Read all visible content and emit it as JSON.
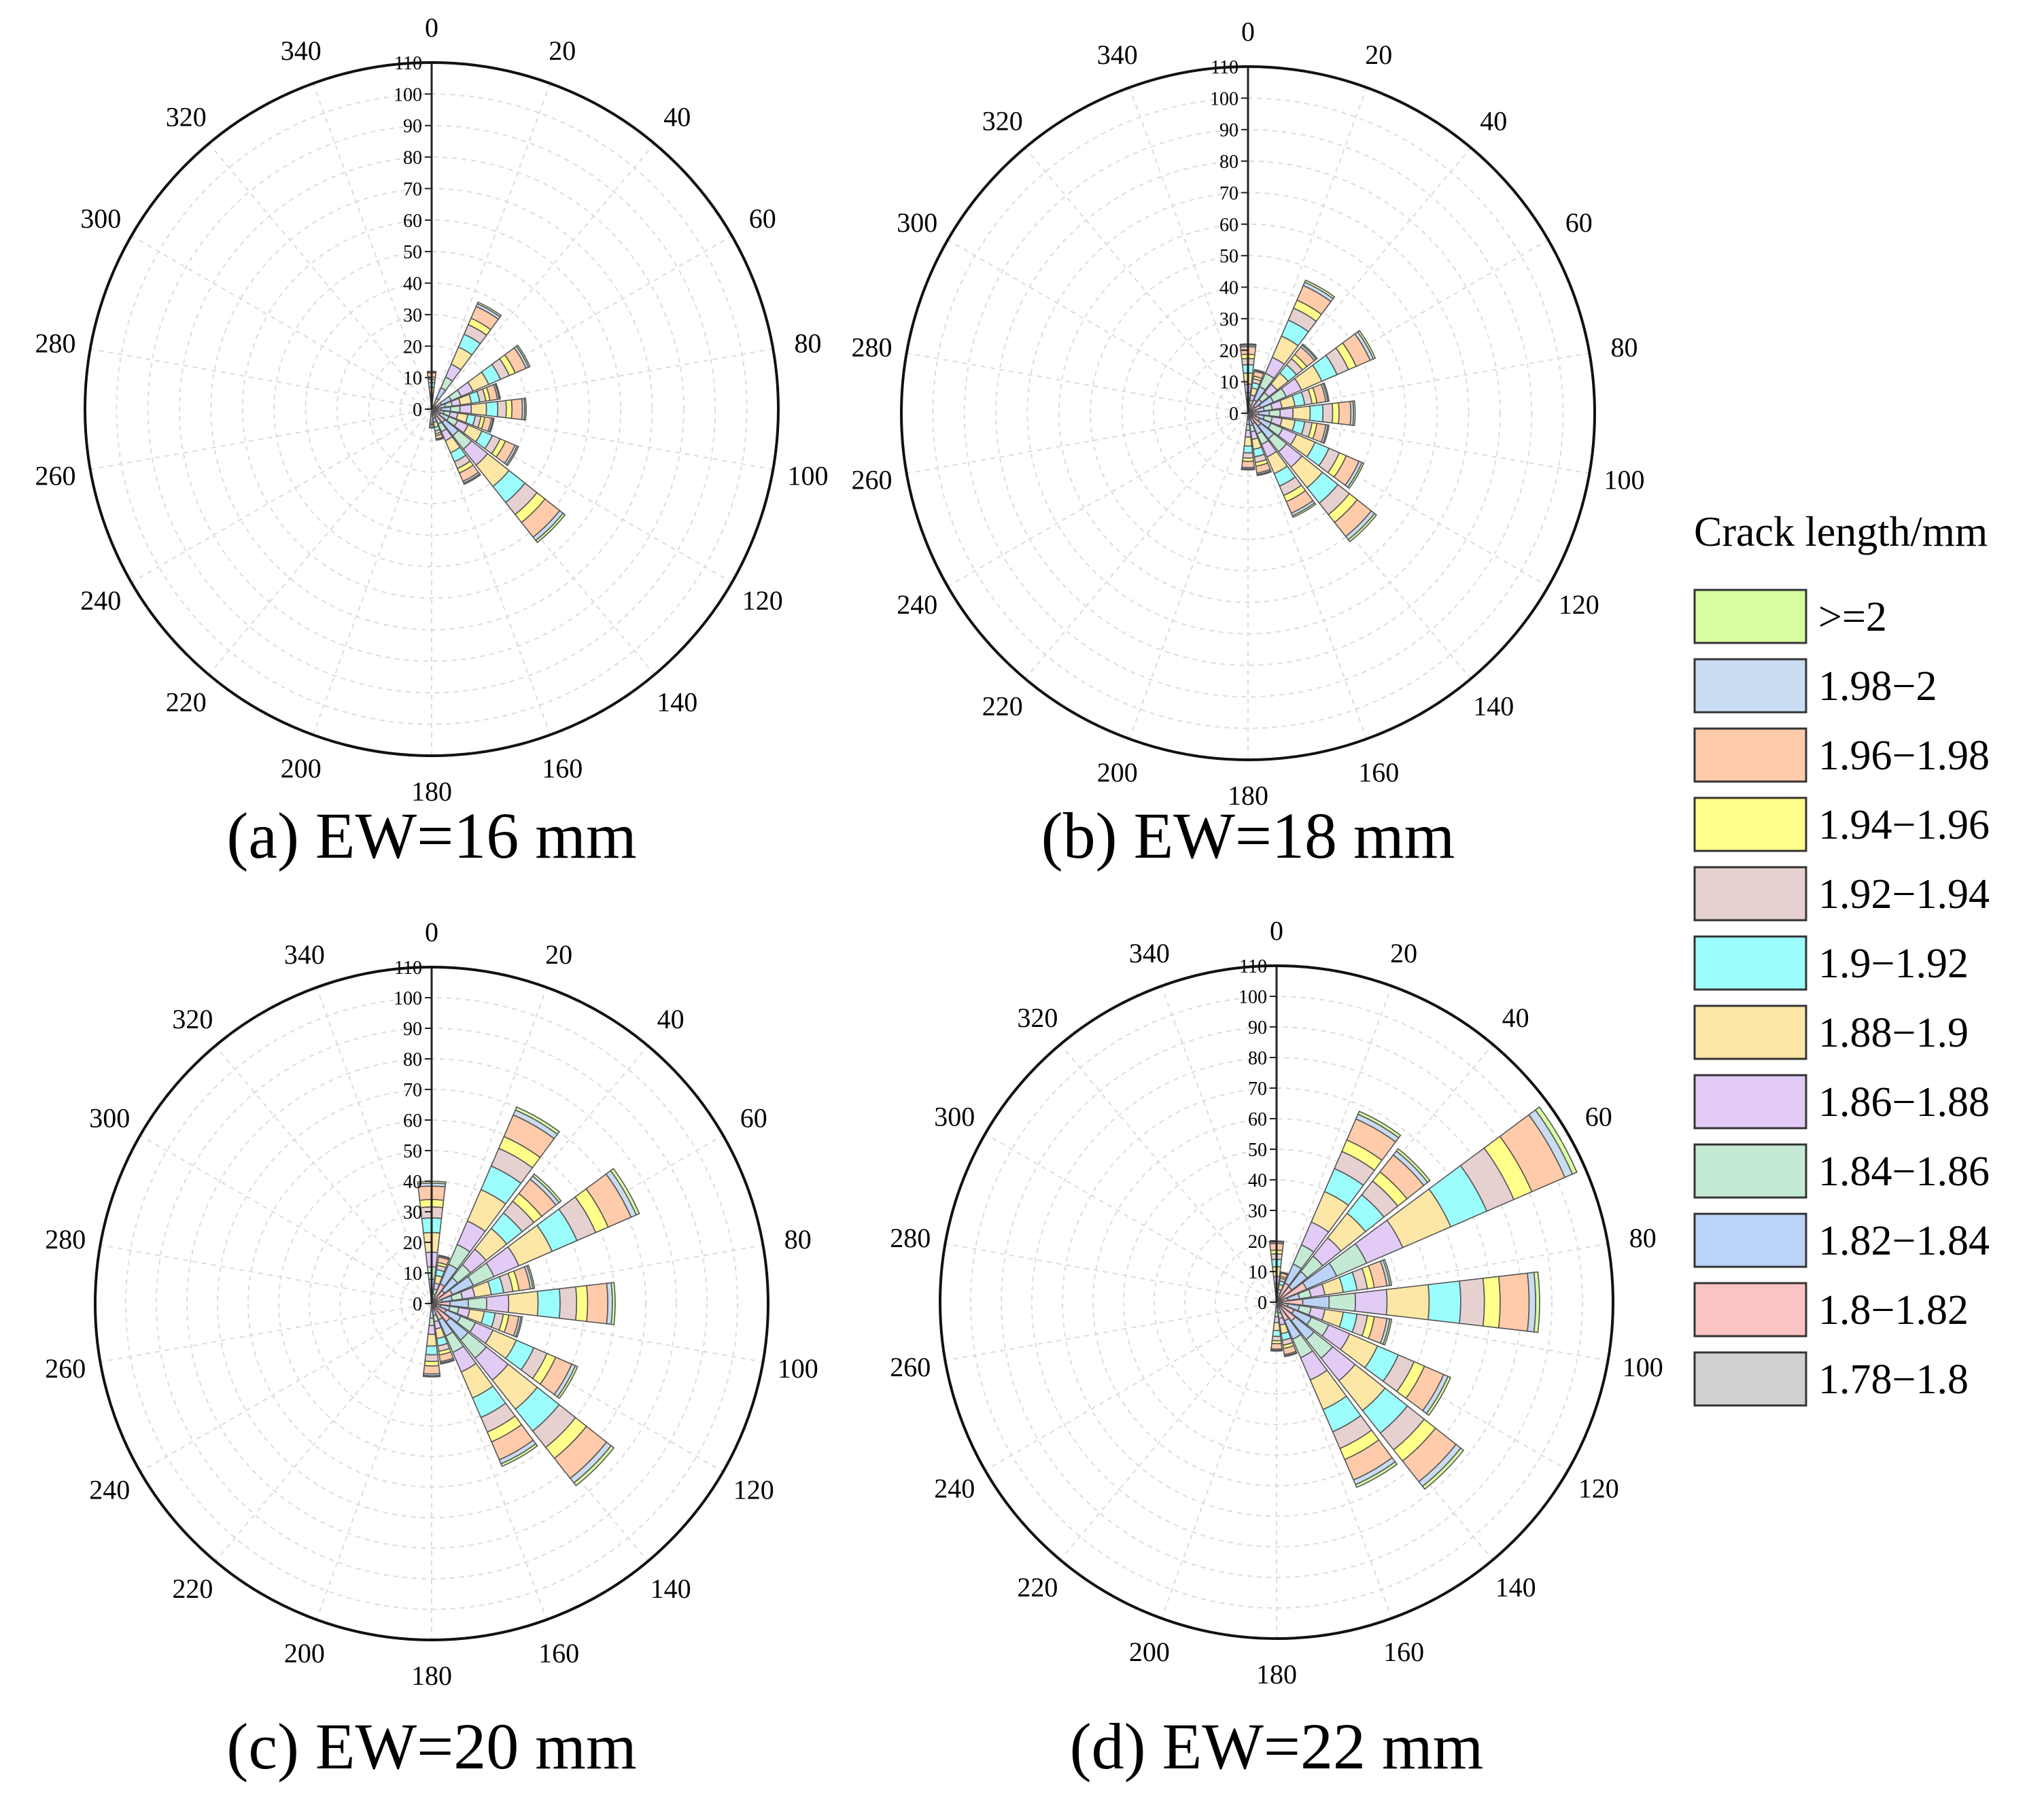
{
  "chart_data": {
    "type": "polar-stacked-bar",
    "legend_title": "Crack length/mm",
    "classes": [
      {
        "label": ">=2",
        "color": "#d9ffa0"
      },
      {
        "label": "1.98−2",
        "color": "#c9dcf2"
      },
      {
        "label": "1.96−1.98",
        "color": "#ffcbaa"
      },
      {
        "label": "1.94−1.96",
        "color": "#ffff8a"
      },
      {
        "label": "1.92−1.94",
        "color": "#e6d0d0"
      },
      {
        "label": "1.9−1.92",
        "color": "#9cfdfd"
      },
      {
        "label": "1.88−1.9",
        "color": "#fde7a6"
      },
      {
        "label": "1.86−1.88",
        "color": "#e2ccf6"
      },
      {
        "label": "1.84−1.86",
        "color": "#c4ead4"
      },
      {
        "label": "1.82−1.84",
        "color": "#bcd3f8"
      },
      {
        "label": "1.8−1.82",
        "color": "#fbc4c4"
      },
      {
        "label": "1.78−1.8",
        "color": "#d0d0d0"
      }
    ],
    "angular_ticks": [
      0,
      20,
      40,
      60,
      80,
      100,
      120,
      140,
      160,
      180,
      200,
      220,
      240,
      260,
      280,
      300,
      320,
      340
    ],
    "radial_ticks": [
      0,
      10,
      20,
      30,
      40,
      50,
      60,
      70,
      80,
      90,
      100,
      110
    ],
    "rmax": 110,
    "bin_width_deg": 15,
    "panels": [
      {
        "caption": "(a) EW=16 mm",
        "bins": [
          {
            "angle": 0,
            "total": 12
          },
          {
            "angle": 30,
            "total": 37
          },
          {
            "angle": 60,
            "total": 34
          },
          {
            "angle": 75,
            "total": 22
          },
          {
            "angle": 90,
            "total": 30
          },
          {
            "angle": 105,
            "total": 20
          },
          {
            "angle": 120,
            "total": 30
          },
          {
            "angle": 135,
            "total": 54
          },
          {
            "angle": 150,
            "total": 26
          },
          {
            "angle": 165,
            "total": 10
          },
          {
            "angle": 180,
            "total": 6
          }
        ]
      },
      {
        "caption": "(b) EW=18 mm",
        "bins": [
          {
            "angle": 0,
            "total": 22
          },
          {
            "angle": 15,
            "total": 14
          },
          {
            "angle": 30,
            "total": 46
          },
          {
            "angle": 45,
            "total": 28
          },
          {
            "angle": 60,
            "total": 44
          },
          {
            "angle": 75,
            "total": 26
          },
          {
            "angle": 90,
            "total": 34
          },
          {
            "angle": 105,
            "total": 26
          },
          {
            "angle": 120,
            "total": 40
          },
          {
            "angle": 135,
            "total": 52
          },
          {
            "angle": 150,
            "total": 36
          },
          {
            "angle": 165,
            "total": 20
          },
          {
            "angle": 180,
            "total": 18
          }
        ]
      },
      {
        "caption": "(c) EW=20 mm",
        "bins": [
          {
            "angle": 0,
            "total": 40
          },
          {
            "angle": 15,
            "total": 16
          },
          {
            "angle": 30,
            "total": 70
          },
          {
            "angle": 45,
            "total": 54
          },
          {
            "angle": 60,
            "total": 74
          },
          {
            "angle": 75,
            "total": 34
          },
          {
            "angle": 90,
            "total": 60
          },
          {
            "angle": 105,
            "total": 30
          },
          {
            "angle": 120,
            "total": 52
          },
          {
            "angle": 135,
            "total": 76
          },
          {
            "angle": 150,
            "total": 58
          },
          {
            "angle": 165,
            "total": 20
          },
          {
            "angle": 180,
            "total": 24
          }
        ]
      },
      {
        "caption": "(d) EW=22 mm",
        "bins": [
          {
            "angle": 0,
            "total": 20
          },
          {
            "angle": 15,
            "total": 10
          },
          {
            "angle": 30,
            "total": 68
          },
          {
            "angle": 45,
            "total": 64
          },
          {
            "angle": 60,
            "total": 107
          },
          {
            "angle": 75,
            "total": 38
          },
          {
            "angle": 90,
            "total": 86
          },
          {
            "angle": 105,
            "total": 38
          },
          {
            "angle": 120,
            "total": 62
          },
          {
            "angle": 135,
            "total": 78
          },
          {
            "angle": 150,
            "total": 66
          },
          {
            "angle": 165,
            "total": 18
          },
          {
            "angle": 180,
            "total": 16
          }
        ]
      }
    ]
  }
}
